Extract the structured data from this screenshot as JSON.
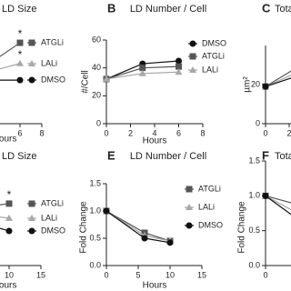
{
  "chart_data": [
    {
      "type": "line",
      "title": "LD Size",
      "xlabel": "Hours",
      "x": [
        0,
        3,
        6
      ],
      "xlim": [
        0,
        8
      ],
      "xticks": [
        6,
        8
      ],
      "ylim": [
        0,
        1.5
      ],
      "legend": true,
      "series": [
        {
          "name": "ATGLi",
          "color": "#555555",
          "marker": "square",
          "values": [
            0.78,
            1.05,
            1.45
          ],
          "significance": [
            null,
            null,
            "*"
          ]
        },
        {
          "name": "LALi",
          "color": "#a8a8a8",
          "marker": "triangle",
          "values": [
            0.78,
            0.92,
            1.08
          ],
          "significance": [
            null,
            null,
            "*"
          ]
        },
        {
          "name": "DMSO",
          "color": "#111111",
          "marker": "circle",
          "values": [
            0.78,
            0.78,
            0.78
          ]
        }
      ]
    },
    {
      "type": "line",
      "panel": "B",
      "title": "LD Number / Cell",
      "xlabel": "Hours",
      "ylabel": "#/Cell",
      "x": [
        0,
        3,
        6
      ],
      "xlim": [
        0,
        8
      ],
      "xticks": [
        0,
        2,
        4,
        6,
        8
      ],
      "ylim": [
        0,
        60
      ],
      "yticks": [
        0,
        20,
        40,
        60
      ],
      "legend": true,
      "series": [
        {
          "name": "DMSO",
          "color": "#111111",
          "marker": "circle",
          "values": [
            32,
            43,
            45
          ]
        },
        {
          "name": "ATGLi",
          "color": "#555555",
          "marker": "square",
          "values": [
            32,
            40,
            41
          ]
        },
        {
          "name": "LALi",
          "color": "#a8a8a8",
          "marker": "triangle",
          "values": [
            32,
            36,
            37
          ]
        }
      ]
    },
    {
      "type": "line",
      "panel": "C",
      "title": "Total",
      "ylabel": "µm²",
      "x": [
        0,
        3,
        6
      ],
      "xlim": [
        0,
        8
      ],
      "xticks": [
        0,
        2
      ],
      "ylim": [
        0,
        40
      ],
      "yticks": [
        0,
        20
      ],
      "series": [
        {
          "name": "ATGLi",
          "color": "#555555",
          "marker": "square",
          "values": [
            19,
            30,
            36
          ]
        },
        {
          "name": "LALi",
          "color": "#a8a8a8",
          "marker": "triangle",
          "values": [
            19,
            27,
            31
          ]
        },
        {
          "name": "DMSO",
          "color": "#111111",
          "marker": "circle",
          "values": [
            19,
            25,
            28
          ]
        }
      ]
    },
    {
      "type": "line",
      "title": "LD Size",
      "xlabel": "Hours",
      "x": [
        0,
        6,
        10
      ],
      "xlim": [
        0,
        15
      ],
      "xticks": [
        10,
        15
      ],
      "ylim": [
        0,
        1.5
      ],
      "legend": true,
      "series": [
        {
          "name": "ATGLi",
          "color": "#555555",
          "marker": "square",
          "values": [
            1.0,
            1.05,
            1.11
          ],
          "significance": [
            null,
            null,
            "*"
          ]
        },
        {
          "name": "LALi",
          "color": "#a8a8a8",
          "marker": "triangle",
          "values": [
            1.0,
            0.9,
            0.85
          ]
        },
        {
          "name": "DMSO",
          "color": "#111111",
          "marker": "circle",
          "values": [
            1.0,
            0.75,
            0.62
          ]
        }
      ]
    },
    {
      "type": "line",
      "panel": "E",
      "title": "LD Number / Cell",
      "xlabel": "Hours",
      "ylabel": "Fold Change",
      "x": [
        0,
        6,
        10
      ],
      "xlim": [
        0,
        15
      ],
      "xticks": [
        0,
        5,
        10,
        15
      ],
      "ylim": [
        0,
        1.5
      ],
      "yticks": [
        {
          "value": 0,
          "label": "0.0"
        },
        {
          "value": 0.5,
          "label": "0.5"
        },
        {
          "value": 1,
          "label": "1.0"
        },
        {
          "value": 1.5,
          "label": "1.5"
        }
      ],
      "legend": true,
      "series": [
        {
          "name": "ATGLi",
          "color": "#555555",
          "marker": "square",
          "values": [
            1.0,
            0.6,
            0.45
          ]
        },
        {
          "name": "LALi",
          "color": "#a8a8a8",
          "marker": "triangle",
          "values": [
            1.0,
            0.55,
            0.45
          ]
        },
        {
          "name": "DMSO",
          "color": "#111111",
          "marker": "circle",
          "values": [
            1.0,
            0.5,
            0.42
          ]
        }
      ]
    },
    {
      "type": "line",
      "panel": "F",
      "title": "Total",
      "ylabel": "Fold Change",
      "x": [
        0,
        6,
        10
      ],
      "xlim": [
        0,
        15
      ],
      "xticks": [
        0
      ],
      "ylim": [
        0,
        1.5
      ],
      "yticks": [
        {
          "value": 0,
          "label": "0.0"
        },
        {
          "value": 0.5,
          "label": "0.5"
        },
        {
          "value": 1,
          "label": "1.0"
        },
        {
          "value": 1.5,
          "label": "1.5"
        }
      ],
      "series": [
        {
          "name": "ATGLi",
          "color": "#555555",
          "marker": "square",
          "values": [
            1.0,
            0.85,
            0.75
          ]
        },
        {
          "name": "LALi",
          "color": "#a8a8a8",
          "marker": "triangle",
          "values": [
            1.0,
            0.7,
            0.6
          ]
        },
        {
          "name": "DMSO",
          "color": "#111111",
          "marker": "circle",
          "values": [
            1.0,
            0.6,
            0.5
          ]
        }
      ]
    }
  ]
}
